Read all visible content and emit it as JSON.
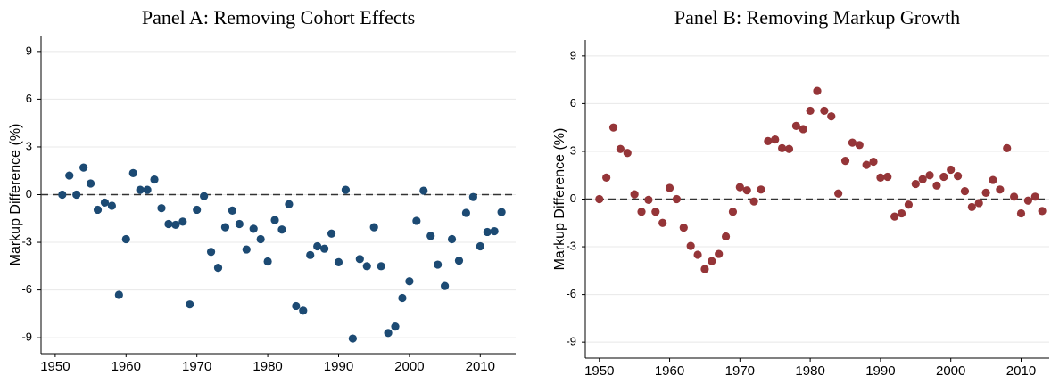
{
  "chart_data": [
    {
      "type": "scatter",
      "title": "Panel A: Removing Cohort Effects",
      "y_label": "Markup Difference (%)",
      "x": [
        1951,
        1952,
        1953,
        1954,
        1955,
        1956,
        1957,
        1958,
        1959,
        1960,
        1961,
        1962,
        1963,
        1964,
        1965,
        1966,
        1967,
        1968,
        1969,
        1970,
        1971,
        1972,
        1973,
        1974,
        1975,
        1976,
        1977,
        1978,
        1979,
        1980,
        1981,
        1982,
        1983,
        1984,
        1985,
        1986,
        1987,
        1988,
        1989,
        1990,
        1991,
        1992,
        1993,
        1994,
        1995,
        1996,
        1997,
        1998,
        1999,
        2000,
        2001,
        2002,
        2003,
        2004,
        2005,
        2006,
        2007,
        2008,
        2009,
        2010,
        2011,
        2012,
        2013
      ],
      "values": [
        0,
        1.2,
        0,
        1.7,
        0.7,
        -0.95,
        -0.5,
        -0.7,
        -6.3,
        -2.8,
        1.35,
        0.3,
        0.3,
        0.95,
        -0.85,
        -1.85,
        -1.9,
        -1.7,
        -6.9,
        -0.95,
        -0.1,
        -3.6,
        -4.6,
        -2.05,
        -1.0,
        -1.85,
        -3.45,
        -2.15,
        -2.8,
        -4.2,
        -1.6,
        -2.2,
        -0.6,
        -7.0,
        -7.3,
        -3.8,
        -3.25,
        -3.4,
        -2.45,
        -4.25,
        0.3,
        -9.05,
        -4.05,
        -4.5,
        -2.05,
        -4.5,
        -8.7,
        -8.3,
        -6.5,
        -5.45,
        -1.65,
        0.25,
        -2.6,
        -4.4,
        -5.75,
        -2.8,
        -4.15,
        -1.15,
        -0.15,
        -3.25,
        -2.35,
        -2.3,
        -1.1
      ],
      "color": "#1c4a73",
      "xlim": [
        1948,
        2015
      ],
      "xticks": [
        1950,
        1960,
        1970,
        1980,
        1990,
        2000,
        2010
      ],
      "ylim": [
        -10,
        10
      ],
      "yticks": [
        -9,
        -6,
        -3,
        0,
        3,
        6,
        9
      ],
      "grid": true,
      "reference_line": 0
    },
    {
      "type": "scatter",
      "title": "Panel B: Removing Markup Growth",
      "y_label": "Markup Difference (%)",
      "x": [
        1950,
        1951,
        1952,
        1953,
        1954,
        1955,
        1956,
        1957,
        1958,
        1959,
        1960,
        1961,
        1962,
        1963,
        1964,
        1965,
        1966,
        1967,
        1968,
        1969,
        1970,
        1971,
        1972,
        1973,
        1974,
        1975,
        1976,
        1977,
        1978,
        1979,
        1980,
        1981,
        1982,
        1983,
        1984,
        1985,
        1986,
        1987,
        1988,
        1989,
        1990,
        1991,
        1992,
        1993,
        1994,
        1995,
        1996,
        1997,
        1998,
        1999,
        2000,
        2001,
        2002,
        2003,
        2004,
        2005,
        2006,
        2007,
        2008,
        2009,
        2010,
        2011,
        2012,
        2013
      ],
      "values": [
        0,
        1.35,
        4.5,
        3.15,
        2.9,
        0.3,
        -0.8,
        -0.05,
        -0.8,
        -1.5,
        0.7,
        0,
        -1.8,
        -2.95,
        -3.5,
        -4.4,
        -3.9,
        -3.45,
        -2.35,
        -0.8,
        0.75,
        0.55,
        -0.15,
        0.6,
        3.65,
        3.75,
        3.2,
        3.15,
        4.6,
        4.4,
        5.55,
        6.8,
        5.55,
        5.2,
        0.35,
        2.4,
        3.55,
        3.4,
        2.15,
        2.35,
        1.35,
        1.4,
        -1.1,
        -0.9,
        -0.35,
        0.95,
        1.25,
        1.5,
        0.85,
        1.4,
        1.85,
        1.45,
        0.5,
        -0.5,
        -0.25,
        0.4,
        1.2,
        0.6,
        3.2,
        0.15,
        -0.9,
        -0.1,
        0.15,
        -0.75
      ],
      "color": "#953538",
      "xlim": [
        1948,
        2014
      ],
      "xticks": [
        1950,
        1960,
        1970,
        1980,
        1990,
        2000,
        2010
      ],
      "ylim": [
        -10,
        10
      ],
      "yticks": [
        -9,
        -6,
        -3,
        0,
        3,
        6,
        9
      ],
      "grid": true,
      "reference_line": 0
    }
  ]
}
